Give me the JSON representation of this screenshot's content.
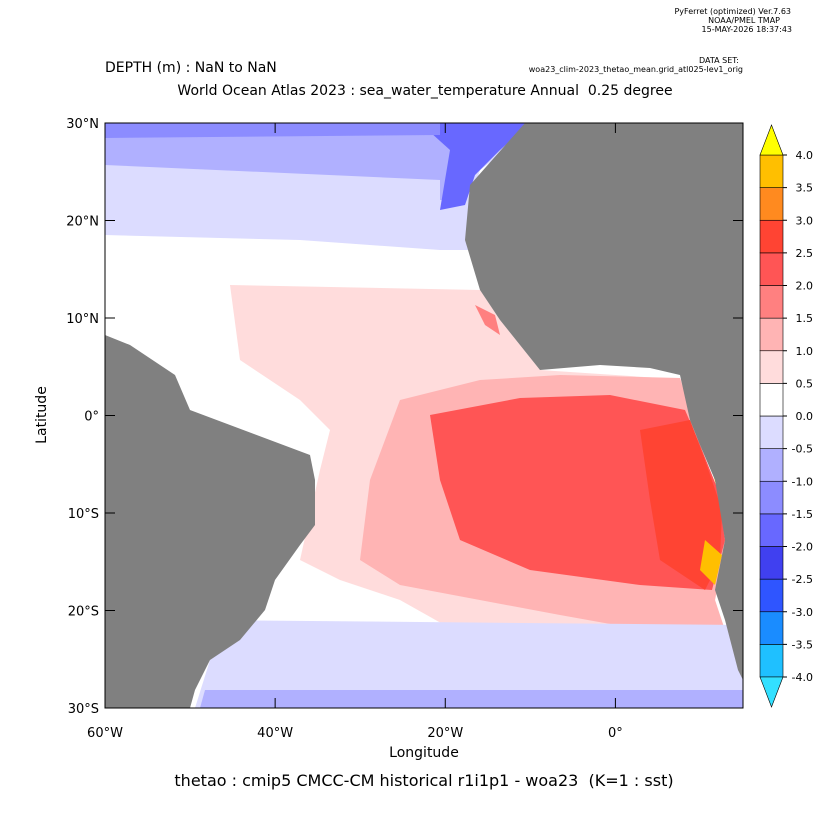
{
  "header": {
    "software": "PyFerret (optimized) Ver.7.63",
    "lab": "NOAA/PMEL TMAP",
    "timestamp": "15-MAY-2026 18:37:43",
    "dataset_label": "DATA SET:",
    "dataset": "woa23_clim-2023_thetao_mean.grid_atl025-lev1_orig"
  },
  "chart_data": {
    "type": "map",
    "subtitle": "DEPTH (m) : NaN to NaN",
    "title": "World Ocean Atlas 2023 : sea_water_temperature Annual  0.25 degree",
    "x_label": "Longitude",
    "y_label": "Latitude",
    "caption": "thetao : cmip5 CMCC-CM historical r1i1p1 - woa23  (K=1 : sst)",
    "xlim": [
      -60,
      15
    ],
    "ylim": [
      -30,
      30
    ],
    "xticks": [
      {
        "value": -60,
        "label": "60°W"
      },
      {
        "value": -40,
        "label": "40°W"
      },
      {
        "value": -20,
        "label": "20°W"
      },
      {
        "value": 0,
        "label": "0°"
      }
    ],
    "yticks": [
      {
        "value": 30,
        "label": "30°N"
      },
      {
        "value": 20,
        "label": "20°N"
      },
      {
        "value": 10,
        "label": "10°N"
      },
      {
        "value": 0,
        "label": "0°"
      },
      {
        "value": -10,
        "label": "10°S"
      },
      {
        "value": -20,
        "label": "20°S"
      },
      {
        "value": -30,
        "label": "30°S"
      }
    ],
    "land_color": "#808080",
    "colorbar": {
      "levels": [
        {
          "value": -4,
          "label": "-4.0"
        },
        {
          "value": -3.5,
          "label": "-3.5"
        },
        {
          "value": -3,
          "label": "-3.0"
        },
        {
          "value": -2.5,
          "label": "-2.5"
        },
        {
          "value": -2,
          "label": "-2.0"
        },
        {
          "value": -1.5,
          "label": "-1.5"
        },
        {
          "value": -1,
          "label": "-1.0"
        },
        {
          "value": -0.5,
          "label": "-0.5"
        },
        {
          "value": 0,
          "label": "0.0"
        },
        {
          "value": 0.5,
          "label": "0.5"
        },
        {
          "value": 1,
          "label": "1.0"
        },
        {
          "value": 1.5,
          "label": "1.5"
        },
        {
          "value": 2,
          "label": "2.0"
        },
        {
          "value": 2.5,
          "label": "2.5"
        },
        {
          "value": 3,
          "label": "3.0"
        },
        {
          "value": 3.5,
          "label": "3.5"
        },
        {
          "value": 4,
          "label": "4.0"
        }
      ],
      "colors": [
        "#33e0ff",
        "#1fc0ff",
        "#1a8cff",
        "#2f55ff",
        "#4040f0",
        "#6868ff",
        "#8c8cff",
        "#b0b0ff",
        "#dcdcff",
        "#ffffff",
        "#ffdcdc",
        "#ffb4b4",
        "#ff8080",
        "#ff5555",
        "#ff4433",
        "#ff8a1f",
        "#ffbf00",
        "#ffff00"
      ]
    }
  }
}
